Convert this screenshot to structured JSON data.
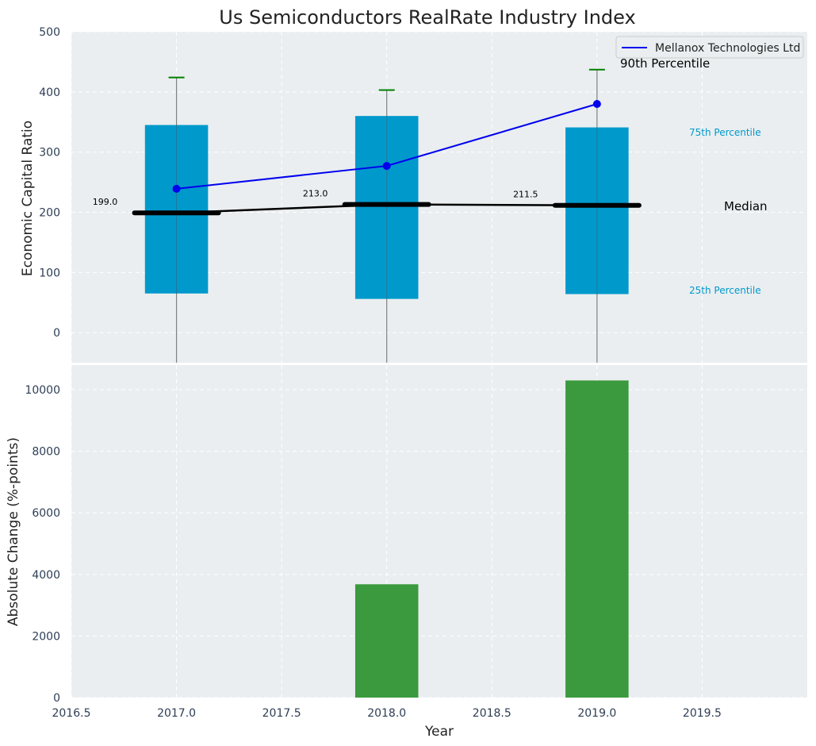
{
  "chart_data": [
    {
      "type": "bar",
      "title": "Us Semiconductors RealRate Industry Index",
      "xlabel": "",
      "ylabel": "Economic Capital Ratio",
      "xlim": [
        2016.5,
        2020.0
      ],
      "ylim": [
        -50,
        500
      ],
      "yticks": [
        0,
        100,
        200,
        300,
        400,
        500
      ],
      "grid": true,
      "legend": {
        "position": "top-right",
        "entries": [
          "Mellanox Technologies Ltd"
        ]
      },
      "boxes": [
        {
          "x": 2017,
          "p25": 65,
          "median": 199.0,
          "p75": 345,
          "p90": 424,
          "median_label": "199.0"
        },
        {
          "x": 2018,
          "p25": 56,
          "median": 213.0,
          "p75": 360,
          "p90": 403,
          "median_label": "213.0"
        },
        {
          "x": 2019,
          "p25": 64,
          "median": 211.5,
          "p75": 341,
          "p90": 437,
          "median_label": "211.5"
        }
      ],
      "series": [
        {
          "name": "Mellanox Technologies Ltd",
          "type": "line",
          "x": [
            2017,
            2018,
            2019
          ],
          "values": [
            239,
            277,
            380
          ]
        }
      ],
      "annotations": {
        "p90": "90th Percentile",
        "p75": "75th Percentile",
        "median": "Median",
        "p25": "25th Percentile"
      }
    },
    {
      "type": "bar",
      "title": "",
      "xlabel": "Year",
      "ylabel": "Absolute Change (%-points)",
      "xlim": [
        2016.5,
        2020.0
      ],
      "ylim": [
        0,
        10800
      ],
      "yticks": [
        0,
        2000,
        4000,
        6000,
        8000,
        10000
      ],
      "xticks": [
        "2016.5",
        "2017.0",
        "2017.5",
        "2018.0",
        "2018.5",
        "2019.0",
        "2019.5"
      ],
      "grid": true,
      "x": [
        2017,
        2018,
        2019
      ],
      "values": [
        0,
        3680,
        10300
      ]
    }
  ],
  "colors": {
    "panel_bg": "#eaeef0",
    "box": "#0099cc",
    "line": "#0000ee",
    "median": "#000000",
    "whisker_cap": "#008000",
    "change_bar": "#3a9a3d",
    "percentile_text": "#0099cc",
    "axis_text": "#2e3e55"
  }
}
